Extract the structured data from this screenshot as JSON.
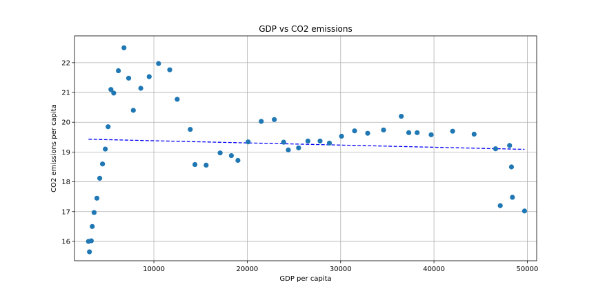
{
  "chart_data": {
    "type": "scatter",
    "title": "GDP vs CO2 emissions",
    "xlabel": "GDP per capita",
    "ylabel": "CO2 emissions per capita",
    "xlim": [
      1500,
      51000
    ],
    "ylim": [
      15.35,
      22.9
    ],
    "xticks": [
      10000,
      20000,
      30000,
      40000,
      50000
    ],
    "yticks": [
      16,
      17,
      18,
      19,
      20,
      21,
      22
    ],
    "grid": true,
    "colors": {
      "points": "#1f77b4",
      "trend": "#0000ff",
      "grid": "#b0b0b0"
    },
    "points": [
      {
        "x": 3000,
        "y": 16.0
      },
      {
        "x": 3100,
        "y": 15.65
      },
      {
        "x": 3300,
        "y": 16.02
      },
      {
        "x": 3400,
        "y": 16.5
      },
      {
        "x": 3600,
        "y": 16.97
      },
      {
        "x": 3900,
        "y": 17.45
      },
      {
        "x": 4200,
        "y": 18.12
      },
      {
        "x": 4500,
        "y": 18.6
      },
      {
        "x": 4800,
        "y": 19.1
      },
      {
        "x": 5100,
        "y": 19.85
      },
      {
        "x": 5400,
        "y": 21.1
      },
      {
        "x": 5700,
        "y": 20.98
      },
      {
        "x": 6200,
        "y": 21.73
      },
      {
        "x": 6800,
        "y": 22.5
      },
      {
        "x": 7300,
        "y": 21.48
      },
      {
        "x": 7800,
        "y": 20.4
      },
      {
        "x": 8600,
        "y": 21.14
      },
      {
        "x": 9500,
        "y": 21.53
      },
      {
        "x": 10500,
        "y": 21.97
      },
      {
        "x": 11700,
        "y": 21.76
      },
      {
        "x": 12500,
        "y": 20.77
      },
      {
        "x": 13900,
        "y": 19.76
      },
      {
        "x": 14400,
        "y": 18.58
      },
      {
        "x": 15600,
        "y": 18.56
      },
      {
        "x": 17100,
        "y": 18.97
      },
      {
        "x": 18300,
        "y": 18.88
      },
      {
        "x": 19000,
        "y": 18.72
      },
      {
        "x": 20100,
        "y": 19.34
      },
      {
        "x": 21500,
        "y": 20.03
      },
      {
        "x": 22900,
        "y": 20.09
      },
      {
        "x": 23900,
        "y": 19.33
      },
      {
        "x": 24400,
        "y": 19.07
      },
      {
        "x": 25500,
        "y": 19.14
      },
      {
        "x": 26500,
        "y": 19.37
      },
      {
        "x": 27800,
        "y": 19.37
      },
      {
        "x": 28800,
        "y": 19.3
      },
      {
        "x": 30100,
        "y": 19.53
      },
      {
        "x": 31500,
        "y": 19.71
      },
      {
        "x": 32900,
        "y": 19.63
      },
      {
        "x": 34600,
        "y": 19.74
      },
      {
        "x": 36500,
        "y": 20.2
      },
      {
        "x": 37300,
        "y": 19.65
      },
      {
        "x": 38200,
        "y": 19.65
      },
      {
        "x": 39700,
        "y": 19.58
      },
      {
        "x": 42000,
        "y": 19.7
      },
      {
        "x": 44300,
        "y": 19.6
      },
      {
        "x": 46600,
        "y": 19.11
      },
      {
        "x": 47100,
        "y": 17.2
      },
      {
        "x": 48100,
        "y": 19.22
      },
      {
        "x": 48300,
        "y": 18.5
      },
      {
        "x": 48400,
        "y": 17.48
      },
      {
        "x": 49700,
        "y": 17.02
      }
    ],
    "trendline": [
      {
        "x": 3000,
        "y": 19.43
      },
      {
        "x": 49700,
        "y": 19.09
      }
    ]
  }
}
